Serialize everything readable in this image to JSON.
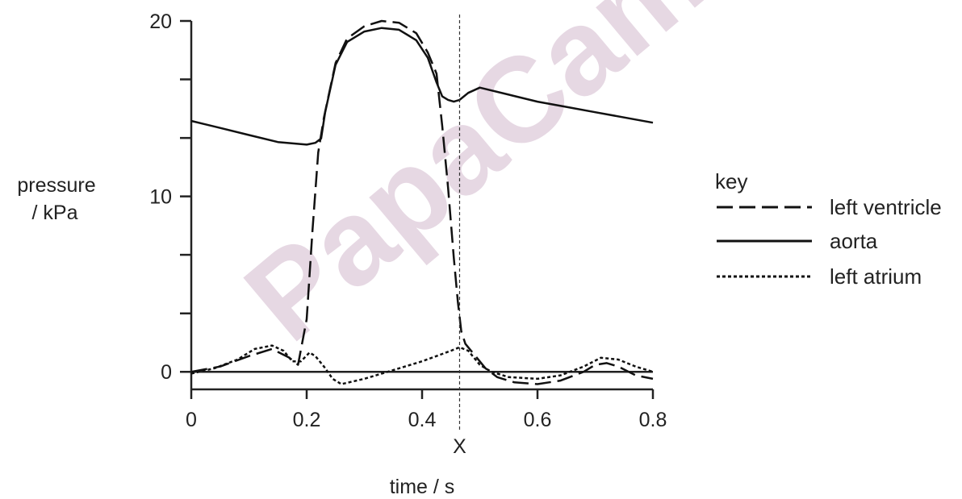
{
  "watermark": "PapaCambridge",
  "chart_data": {
    "type": "line",
    "xlabel": "time / s",
    "ylabel_line1": "pressure",
    "ylabel_line2": "/ kPa",
    "xlim": [
      0,
      0.8
    ],
    "ylim": [
      -1,
      20
    ],
    "x_ticks": [
      0,
      0.2,
      0.4,
      0.6,
      0.8
    ],
    "x_tick_labels": [
      "0",
      "0.2",
      "0.4",
      "0.6",
      "0.8"
    ],
    "y_ticks": [
      0,
      10,
      20
    ],
    "y_tick_labels": [
      "0",
      "10",
      "20"
    ],
    "y_minor_ticks": [
      0,
      3.33,
      6.67,
      10,
      13.33,
      16.67,
      20
    ],
    "marker": {
      "label": "X",
      "x": 0.465
    },
    "legend": {
      "title": "key",
      "placement": "right"
    },
    "series": [
      {
        "name": "left ventricle",
        "style": "dashed",
        "points": [
          [
            0.0,
            0.0
          ],
          [
            0.05,
            0.3
          ],
          [
            0.1,
            0.9
          ],
          [
            0.14,
            1.3
          ],
          [
            0.17,
            0.8
          ],
          [
            0.185,
            0.4
          ],
          [
            0.2,
            3.0
          ],
          [
            0.21,
            8.0
          ],
          [
            0.22,
            12.5
          ],
          [
            0.23,
            14.5
          ],
          [
            0.25,
            17.6
          ],
          [
            0.27,
            19.0
          ],
          [
            0.3,
            19.7
          ],
          [
            0.33,
            20.0
          ],
          [
            0.36,
            19.9
          ],
          [
            0.39,
            19.3
          ],
          [
            0.41,
            18.2
          ],
          [
            0.425,
            17.0
          ],
          [
            0.435,
            14.0
          ],
          [
            0.445,
            10.5
          ],
          [
            0.455,
            6.5
          ],
          [
            0.462,
            4.0
          ],
          [
            0.468,
            2.3
          ],
          [
            0.475,
            1.6
          ],
          [
            0.49,
            1.0
          ],
          [
            0.51,
            0.2
          ],
          [
            0.53,
            -0.3
          ],
          [
            0.56,
            -0.6
          ],
          [
            0.6,
            -0.7
          ],
          [
            0.64,
            -0.5
          ],
          [
            0.68,
            0.0
          ],
          [
            0.7,
            0.4
          ],
          [
            0.72,
            0.5
          ],
          [
            0.74,
            0.3
          ],
          [
            0.77,
            -0.2
          ],
          [
            0.8,
            -0.4
          ]
        ]
      },
      {
        "name": "aorta",
        "style": "solid",
        "points": [
          [
            0.0,
            14.3
          ],
          [
            0.05,
            13.9
          ],
          [
            0.1,
            13.5
          ],
          [
            0.15,
            13.1
          ],
          [
            0.2,
            12.95
          ],
          [
            0.215,
            13.05
          ],
          [
            0.225,
            13.3
          ],
          [
            0.232,
            14.8
          ],
          [
            0.25,
            17.5
          ],
          [
            0.27,
            18.8
          ],
          [
            0.3,
            19.4
          ],
          [
            0.33,
            19.6
          ],
          [
            0.36,
            19.5
          ],
          [
            0.39,
            18.9
          ],
          [
            0.41,
            17.9
          ],
          [
            0.425,
            16.5
          ],
          [
            0.435,
            15.7
          ],
          [
            0.445,
            15.5
          ],
          [
            0.455,
            15.4
          ],
          [
            0.465,
            15.5
          ],
          [
            0.48,
            15.9
          ],
          [
            0.5,
            16.2
          ],
          [
            0.55,
            15.8
          ],
          [
            0.6,
            15.4
          ],
          [
            0.65,
            15.1
          ],
          [
            0.7,
            14.8
          ],
          [
            0.75,
            14.5
          ],
          [
            0.8,
            14.2
          ]
        ]
      },
      {
        "name": "left atrium",
        "style": "dotted",
        "points": [
          [
            0.0,
            -0.1
          ],
          [
            0.04,
            0.2
          ],
          [
            0.08,
            0.7
          ],
          [
            0.11,
            1.3
          ],
          [
            0.14,
            1.5
          ],
          [
            0.16,
            1.2
          ],
          [
            0.175,
            0.6
          ],
          [
            0.19,
            0.6
          ],
          [
            0.205,
            1.1
          ],
          [
            0.215,
            0.9
          ],
          [
            0.23,
            0.3
          ],
          [
            0.245,
            -0.4
          ],
          [
            0.26,
            -0.7
          ],
          [
            0.3,
            -0.4
          ],
          [
            0.35,
            0.1
          ],
          [
            0.4,
            0.6
          ],
          [
            0.45,
            1.2
          ],
          [
            0.465,
            1.4
          ],
          [
            0.48,
            1.2
          ],
          [
            0.5,
            0.4
          ],
          [
            0.52,
            0.0
          ],
          [
            0.55,
            -0.3
          ],
          [
            0.6,
            -0.4
          ],
          [
            0.64,
            -0.2
          ],
          [
            0.68,
            0.3
          ],
          [
            0.71,
            0.8
          ],
          [
            0.74,
            0.7
          ],
          [
            0.77,
            0.3
          ],
          [
            0.8,
            0.0
          ]
        ]
      }
    ]
  }
}
